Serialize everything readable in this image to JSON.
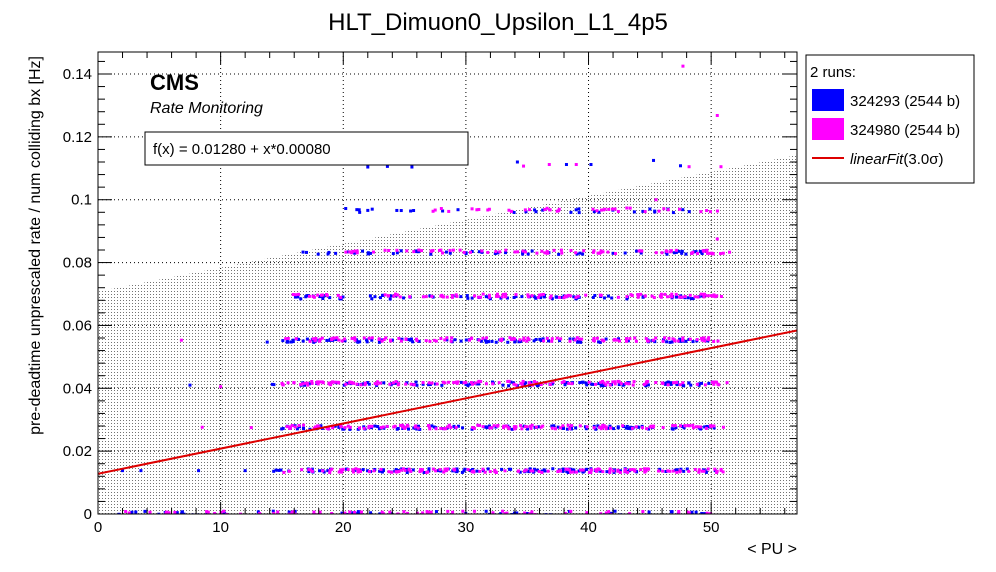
{
  "chart_data": {
    "type": "scatter",
    "title": "HLT_Dimuon0_Upsilon_L1_4p5",
    "xlabel": "< PU >",
    "ylabel": "pre-deadtime unprescaled rate / num colliding bx [Hz]",
    "xlim": [
      0,
      57
    ],
    "ylim": [
      0,
      0.147
    ],
    "x_ticks": [
      0,
      10,
      20,
      30,
      40,
      50
    ],
    "y_ticks": [
      0,
      0.02,
      0.04,
      0.06,
      0.08,
      0.1,
      0.12,
      0.14
    ],
    "x_tick_labels": [
      "0",
      "10",
      "20",
      "30",
      "40",
      "50"
    ],
    "y_tick_labels": [
      "0",
      "0.02",
      "0.04",
      "0.06",
      "0.08",
      "0.1",
      "0.12",
      "0.14"
    ],
    "grid": true,
    "cms_label": "CMS",
    "sub_label": "Rate Monitoring",
    "fit": {
      "label": "f(x) = 0.01280 + x*0.00080",
      "intercept": 0.0128,
      "slope": 0.0008,
      "sigma": 3.0,
      "color": "#dd0000"
    },
    "band": {
      "lower": {
        "y0": 0.0,
        "y1": 0.0
      },
      "upper": {
        "y0": 0.0708,
        "y1": 0.1142
      }
    },
    "legend": {
      "header": "2 runs:",
      "position": "right-outside",
      "entries": [
        {
          "label": "324293 (2544 b)",
          "color": "#0000ff",
          "kind": "box"
        },
        {
          "label": "324980 (2544 b)",
          "color": "#ff00ff",
          "kind": "box"
        },
        {
          "label_main": "linearFit",
          "label_tail": "(3.0σ)",
          "color": "#dd0000",
          "kind": "line"
        }
      ]
    },
    "series": [
      {
        "name": "324293 (2544 b)",
        "color": "#0000ff",
        "bands": [
          {
            "y": 0.0138,
            "x_min": 14.0,
            "x_max": 50.5,
            "n": 120
          },
          {
            "y": 0.0275,
            "x_min": 14.5,
            "x_max": 50.5,
            "n": 110
          },
          {
            "y": 0.0414,
            "x_min": 14.0,
            "x_max": 50.5,
            "n": 110
          },
          {
            "y": 0.0552,
            "x_min": 15.0,
            "x_max": 50.5,
            "n": 100
          },
          {
            "y": 0.069,
            "x_min": 16.0,
            "x_max": 50.5,
            "n": 90
          },
          {
            "y": 0.0832,
            "x_min": 16.0,
            "x_max": 50.5,
            "n": 60
          },
          {
            "y": 0.0965,
            "x_min": 20.0,
            "x_max": 50.5,
            "n": 30
          },
          {
            "y": 0.0003,
            "x_min": 1.0,
            "x_max": 50.0,
            "n": 60
          }
        ],
        "points": [
          [
            7.5,
            0.041
          ],
          [
            8.2,
            0.0138
          ],
          [
            13.8,
            0.0547
          ],
          [
            22.0,
            0.1104
          ],
          [
            23.6,
            0.1106
          ],
          [
            25.6,
            0.1104
          ],
          [
            34.2,
            0.112
          ],
          [
            38.2,
            0.1112
          ],
          [
            40.2,
            0.1112
          ],
          [
            45.3,
            0.1125
          ],
          [
            47.5,
            0.1108
          ],
          [
            20.2,
            0.0972
          ],
          [
            21.3,
            0.0968
          ],
          [
            22.0,
            0.0966
          ],
          [
            2.0,
            0.0138
          ],
          [
            3.5,
            0.0138
          ],
          [
            12.0,
            0.0138
          ]
        ]
      },
      {
        "name": "324980 (2544 b)",
        "color": "#ff00ff",
        "bands": [
          {
            "y": 0.0138,
            "x_min": 15.0,
            "x_max": 51.0,
            "n": 140
          },
          {
            "y": 0.0277,
            "x_min": 15.0,
            "x_max": 51.0,
            "n": 130
          },
          {
            "y": 0.0416,
            "x_min": 15.0,
            "x_max": 51.0,
            "n": 130
          },
          {
            "y": 0.0555,
            "x_min": 15.0,
            "x_max": 51.0,
            "n": 120
          },
          {
            "y": 0.0694,
            "x_min": 15.0,
            "x_max": 51.0,
            "n": 110
          },
          {
            "y": 0.0834,
            "x_min": 20.0,
            "x_max": 51.0,
            "n": 80
          },
          {
            "y": 0.0968,
            "x_min": 27.0,
            "x_max": 51.0,
            "n": 40
          },
          {
            "y": 0.0003,
            "x_min": 1.0,
            "x_max": 51.0,
            "n": 80
          }
        ],
        "points": [
          [
            47.7,
            0.1425
          ],
          [
            50.5,
            0.1268
          ],
          [
            34.7,
            0.1107
          ],
          [
            36.8,
            0.1112
          ],
          [
            39.0,
            0.1112
          ],
          [
            48.2,
            0.1105
          ],
          [
            50.8,
            0.1105
          ],
          [
            6.8,
            0.0553
          ],
          [
            8.5,
            0.0276
          ],
          [
            10.0,
            0.0405
          ],
          [
            12.5,
            0.0275
          ],
          [
            28.0,
            0.0972
          ],
          [
            50.5,
            0.0875
          ],
          [
            51.5,
            0.0833
          ],
          [
            51.0,
            0.0276
          ],
          [
            51.3,
            0.0418
          ],
          [
            45.5,
            0.1
          ]
        ]
      }
    ]
  }
}
